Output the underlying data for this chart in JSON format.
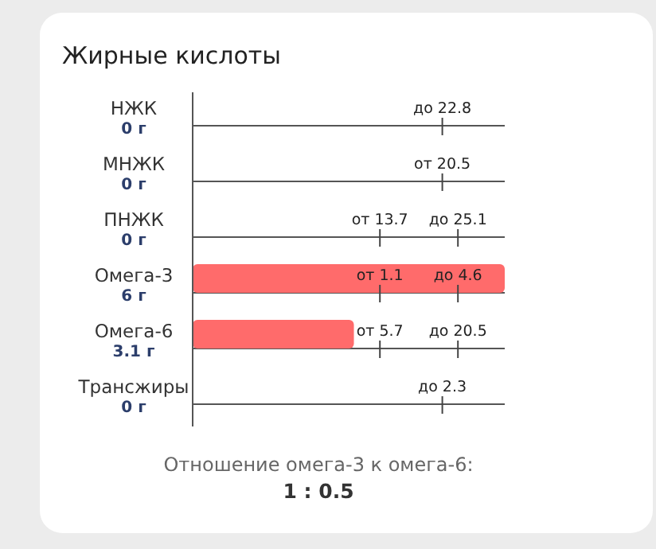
{
  "chart_data": {
    "type": "bar",
    "orientation": "horizontal",
    "title": "Жирные кислоты",
    "categories": [
      "НЖК",
      "МНЖК",
      "ПНЖК",
      "Омега-3",
      "Омега-6",
      "Трансжиры"
    ],
    "values": [
      0,
      0,
      0,
      6,
      3.1,
      0
    ],
    "value_labels": [
      "0 г",
      "0 г",
      "0 г",
      "6 г",
      "3.1 г",
      "0 г"
    ],
    "color": "#ff6b6b",
    "xlim": [
      0,
      6
    ],
    "tick_labels": "y",
    "grid": "y",
    "annotations": [
      "до 22.8",
      "от 20.5",
      "от 13.7",
      "до 25.1",
      "от 1.1",
      "до 4.6",
      "от 5.7",
      "до 20.5",
      "до 2.3",
      "Отношение омега-3 к омега-6:",
      "1 : 0.5"
    ]
  }
}
